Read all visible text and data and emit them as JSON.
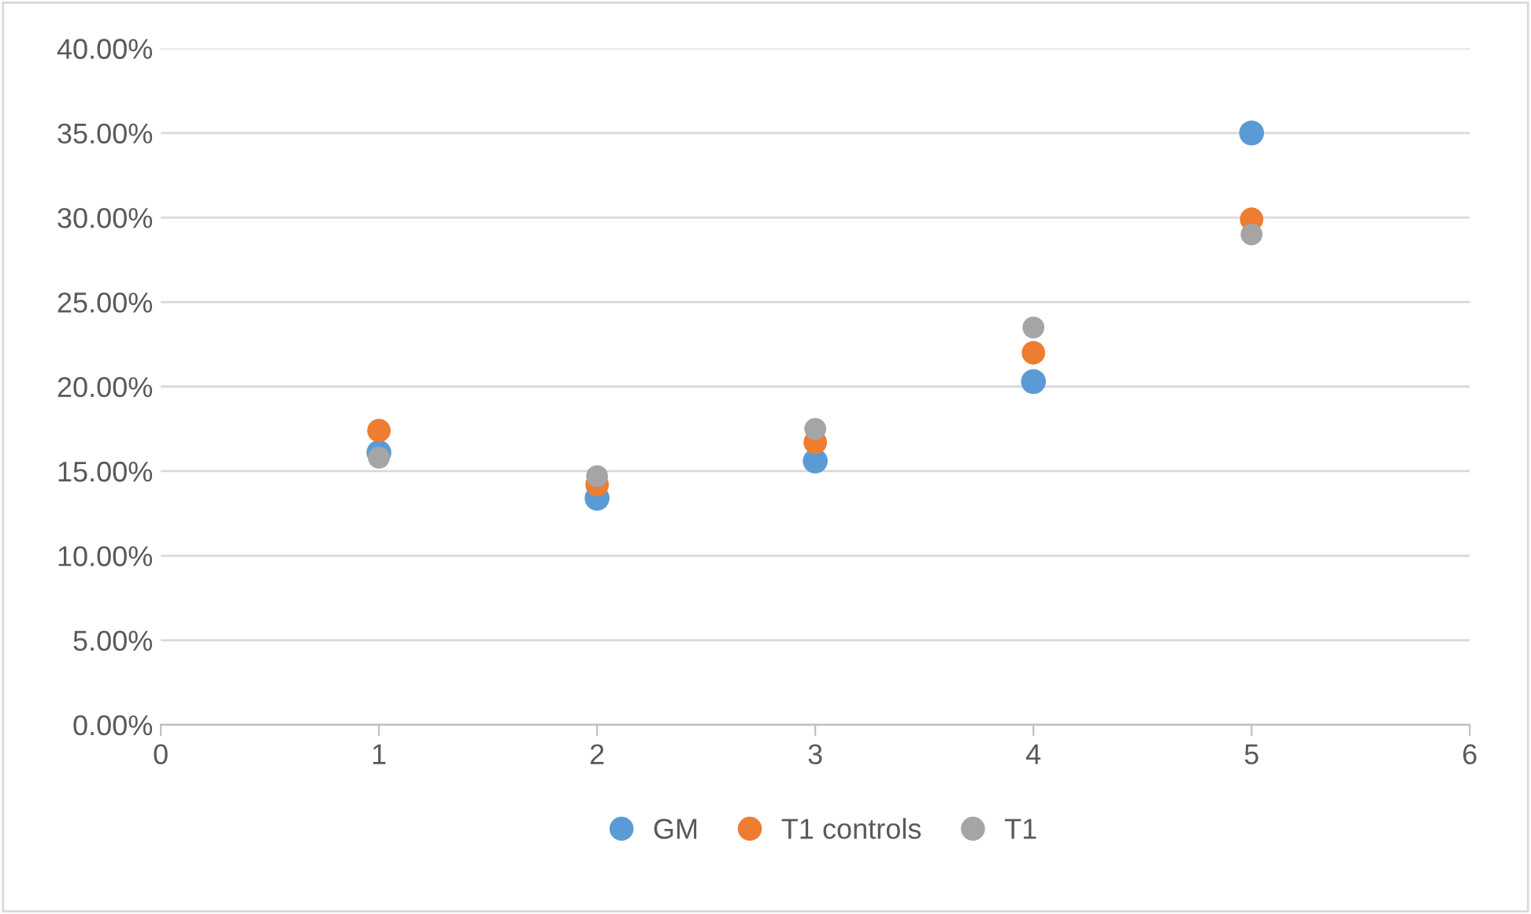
{
  "chart_data": {
    "type": "scatter",
    "x": [
      1,
      2,
      3,
      4,
      5
    ],
    "series": [
      {
        "name": "GM",
        "color": "#5b9bd5",
        "values": [
          16.1,
          13.4,
          15.6,
          20.3,
          35.0
        ]
      },
      {
        "name": "T1 controls",
        "color": "#ed7d31",
        "values": [
          17.4,
          14.2,
          16.7,
          22.0,
          29.9
        ]
      },
      {
        "name": "T1",
        "color": "#a5a5a5",
        "values": [
          15.8,
          14.7,
          17.5,
          23.5,
          29.0
        ]
      }
    ],
    "xlim": [
      0,
      6
    ],
    "xticks": [
      0,
      1,
      2,
      3,
      4,
      5,
      6
    ],
    "ylim": [
      0,
      40
    ],
    "yticks": [
      {
        "value": 0,
        "label": "0.00%"
      },
      {
        "value": 5,
        "label": "5.00%"
      },
      {
        "value": 10,
        "label": "10.00%"
      },
      {
        "value": 15,
        "label": "15.00%"
      },
      {
        "value": 20,
        "label": "20.00%"
      },
      {
        "value": 25,
        "label": "25.00%"
      },
      {
        "value": 30,
        "label": "30.00%"
      },
      {
        "value": 35,
        "label": "35.00%"
      },
      {
        "value": 40,
        "label": "40.00%"
      }
    ],
    "grid": "y",
    "legend": "bottom",
    "marker": "circle"
  }
}
